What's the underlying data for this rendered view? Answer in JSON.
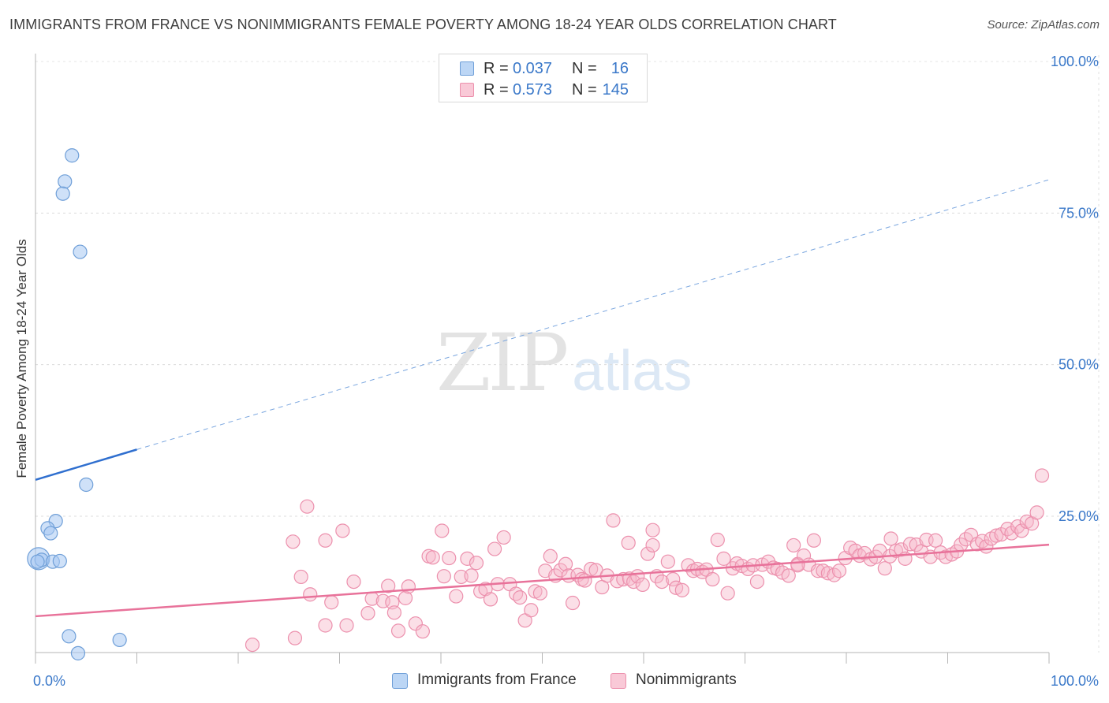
{
  "title": "IMMIGRANTS FROM FRANCE VS NONIMMIGRANTS FEMALE POVERTY AMONG 18-24 YEAR OLDS CORRELATION CHART",
  "source": "Source: ZipAtlas.com",
  "watermark": {
    "zip": "ZIP",
    "atlas": "atlas"
  },
  "legend_top": [
    {
      "r_label": "R =",
      "r_value": "0.037",
      "n_label": "N =",
      "n_value": "16",
      "color": "#a7c8f2"
    },
    {
      "r_label": "R =",
      "r_value": "0.573",
      "n_label": "N =",
      "n_value": "145",
      "color": "#f6b7c9"
    }
  ],
  "legend_bottom": [
    {
      "label": "Immigrants from France",
      "color": "#a7c8f2"
    },
    {
      "label": "Nonimmigrants",
      "color": "#f6b7c9"
    }
  ],
  "chart_data": {
    "type": "scatter",
    "title": "IMMIGRANTS FROM FRANCE VS NONIMMIGRANTS FEMALE POVERTY AMONG 18-24 YEAR OLDS CORRELATION CHART",
    "xlabel": "",
    "ylabel": "Female Poverty Among 18-24 Year Olds",
    "xlim": [
      0,
      100
    ],
    "ylim": [
      0,
      105
    ],
    "x_tick_labels": [
      {
        "value": 0,
        "label": "0.0%"
      },
      {
        "value": 100,
        "label": "100.0%"
      }
    ],
    "y_tick_labels": [
      {
        "value": 25,
        "label": "25.0%"
      },
      {
        "value": 50,
        "label": "50.0%"
      },
      {
        "value": 75,
        "label": "75.0%"
      },
      {
        "value": 100,
        "label": "100.0%"
      }
    ],
    "grid": true,
    "series": [
      {
        "name": "Immigrants from France",
        "color": "#a7c8f2",
        "stroke": "#6f9fd8",
        "line_color": "#2f6fcf",
        "trend": {
          "x0": 0,
          "y0": 31.0,
          "x1": 10,
          "y1": 36.0,
          "dashed_to_x": 100,
          "dashed_to_y": 80.5
        },
        "points": [
          [
            3.6,
            84.5
          ],
          [
            2.9,
            80.2
          ],
          [
            2.7,
            78.2
          ],
          [
            4.4,
            68.6
          ],
          [
            5.0,
            30.2
          ],
          [
            2.0,
            24.2
          ],
          [
            1.2,
            23.0
          ],
          [
            1.5,
            22.2
          ],
          [
            0.3,
            18.0
          ],
          [
            0.6,
            17.8
          ],
          [
            1.7,
            17.5
          ],
          [
            2.4,
            17.6
          ],
          [
            0.2,
            17.5
          ],
          [
            3.3,
            5.2
          ],
          [
            8.3,
            4.6
          ],
          [
            4.2,
            2.4
          ]
        ],
        "large_point": [
          0.3,
          18.0
        ]
      },
      {
        "name": "Nonimmigrants",
        "color": "#f6b7c9",
        "stroke": "#ec90ad",
        "line_color": "#e8729a",
        "trend": {
          "x0": 0,
          "y0": 8.5,
          "x1": 100,
          "y1": 20.3
        },
        "points": [
          [
            21.4,
            3.8
          ],
          [
            25.4,
            20.8
          ],
          [
            25.6,
            4.9
          ],
          [
            26.2,
            15.0
          ],
          [
            26.8,
            26.6
          ],
          [
            27.1,
            12.1
          ],
          [
            28.6,
            21.0
          ],
          [
            29.2,
            10.8
          ],
          [
            28.6,
            7.0
          ],
          [
            30.3,
            22.6
          ],
          [
            30.7,
            7.0
          ],
          [
            31.4,
            14.2
          ],
          [
            32.8,
            9.0
          ],
          [
            33.2,
            11.4
          ],
          [
            34.3,
            11.0
          ],
          [
            34.8,
            13.5
          ],
          [
            35.2,
            10.8
          ],
          [
            35.4,
            9.1
          ],
          [
            35.8,
            6.1
          ],
          [
            36.5,
            11.5
          ],
          [
            36.8,
            13.4
          ],
          [
            37.5,
            7.3
          ],
          [
            38.2,
            6.0
          ],
          [
            38.8,
            18.4
          ],
          [
            39.2,
            18.2
          ],
          [
            40.1,
            22.6
          ],
          [
            40.3,
            15.1
          ],
          [
            40.8,
            18.1
          ],
          [
            41.5,
            11.8
          ],
          [
            42.0,
            15.0
          ],
          [
            42.6,
            18.0
          ],
          [
            43.0,
            15.2
          ],
          [
            43.5,
            17.3
          ],
          [
            43.9,
            12.6
          ],
          [
            44.4,
            13.0
          ],
          [
            44.9,
            11.3
          ],
          [
            45.3,
            19.6
          ],
          [
            45.6,
            13.8
          ],
          [
            46.2,
            21.5
          ],
          [
            46.8,
            13.8
          ],
          [
            47.4,
            12.2
          ],
          [
            47.8,
            11.6
          ],
          [
            48.3,
            7.8
          ],
          [
            48.9,
            9.5
          ],
          [
            49.3,
            12.6
          ],
          [
            49.8,
            12.3
          ],
          [
            50.3,
            16.0
          ],
          [
            50.8,
            18.4
          ],
          [
            51.3,
            15.2
          ],
          [
            51.8,
            16.1
          ],
          [
            52.3,
            17.1
          ],
          [
            52.6,
            15.2
          ],
          [
            53.0,
            10.7
          ],
          [
            53.5,
            15.3
          ],
          [
            53.9,
            14.6
          ],
          [
            54.2,
            14.4
          ],
          [
            54.8,
            16.3
          ],
          [
            55.3,
            16.1
          ],
          [
            55.9,
            13.3
          ],
          [
            56.4,
            15.2
          ],
          [
            57.0,
            24.3
          ],
          [
            57.4,
            14.3
          ],
          [
            58.0,
            14.6
          ],
          [
            58.6,
            14.7
          ],
          [
            59.0,
            14.2
          ],
          [
            59.4,
            15.1
          ],
          [
            59.9,
            13.7
          ],
          [
            60.4,
            18.8
          ],
          [
            60.9,
            20.2
          ],
          [
            61.3,
            15.1
          ],
          [
            61.8,
            14.2
          ],
          [
            62.4,
            17.5
          ],
          [
            62.9,
            14.6
          ],
          [
            63.2,
            13.2
          ],
          [
            63.8,
            12.8
          ],
          [
            64.4,
            16.9
          ],
          [
            64.9,
            16.0
          ],
          [
            65.3,
            16.3
          ],
          [
            65.8,
            15.8
          ],
          [
            66.2,
            16.2
          ],
          [
            66.8,
            14.6
          ],
          [
            67.3,
            21.1
          ],
          [
            67.9,
            18.0
          ],
          [
            68.3,
            12.3
          ],
          [
            68.8,
            16.4
          ],
          [
            69.2,
            17.2
          ],
          [
            69.7,
            16.8
          ],
          [
            70.3,
            16.3
          ],
          [
            70.8,
            16.9
          ],
          [
            71.2,
            14.2
          ],
          [
            71.7,
            17.0
          ],
          [
            72.3,
            17.5
          ],
          [
            72.8,
            16.5
          ],
          [
            73.2,
            16.3
          ],
          [
            73.7,
            15.7
          ],
          [
            74.3,
            15.2
          ],
          [
            74.8,
            20.2
          ],
          [
            75.2,
            17.1
          ],
          [
            75.8,
            18.5
          ],
          [
            76.3,
            17.0
          ],
          [
            76.8,
            21.0
          ],
          [
            77.2,
            16.0
          ],
          [
            77.7,
            16.0
          ],
          [
            78.2,
            15.6
          ],
          [
            78.8,
            15.3
          ],
          [
            79.3,
            16.0
          ],
          [
            79.9,
            18.1
          ],
          [
            80.4,
            19.8
          ],
          [
            80.9,
            19.3
          ],
          [
            81.3,
            18.5
          ],
          [
            81.8,
            18.9
          ],
          [
            82.4,
            17.9
          ],
          [
            82.9,
            18.3
          ],
          [
            83.3,
            19.3
          ],
          [
            83.8,
            16.4
          ],
          [
            84.3,
            18.4
          ],
          [
            84.9,
            19.3
          ],
          [
            85.4,
            19.5
          ],
          [
            85.8,
            18.0
          ],
          [
            86.3,
            20.4
          ],
          [
            86.9,
            20.3
          ],
          [
            87.4,
            19.2
          ],
          [
            87.9,
            21.1
          ],
          [
            88.3,
            18.3
          ],
          [
            88.8,
            21.0
          ],
          [
            89.3,
            19.0
          ],
          [
            89.8,
            18.3
          ],
          [
            90.4,
            18.7
          ],
          [
            90.9,
            19.2
          ],
          [
            91.3,
            20.3
          ],
          [
            91.8,
            21.2
          ],
          [
            92.3,
            21.9
          ],
          [
            92.9,
            20.4
          ],
          [
            93.4,
            20.9
          ],
          [
            93.8,
            20.0
          ],
          [
            94.3,
            21.3
          ],
          [
            94.8,
            21.8
          ],
          [
            95.3,
            22.0
          ],
          [
            95.9,
            22.9
          ],
          [
            96.3,
            22.2
          ],
          [
            96.9,
            23.3
          ],
          [
            97.3,
            22.6
          ],
          [
            97.8,
            24.1
          ],
          [
            98.3,
            23.8
          ],
          [
            98.8,
            25.6
          ],
          [
            99.3,
            31.7
          ],
          [
            58.5,
            20.6
          ],
          [
            60.9,
            22.7
          ],
          [
            75.2,
            16.9
          ],
          [
            84.4,
            21.3
          ]
        ]
      }
    ]
  }
}
